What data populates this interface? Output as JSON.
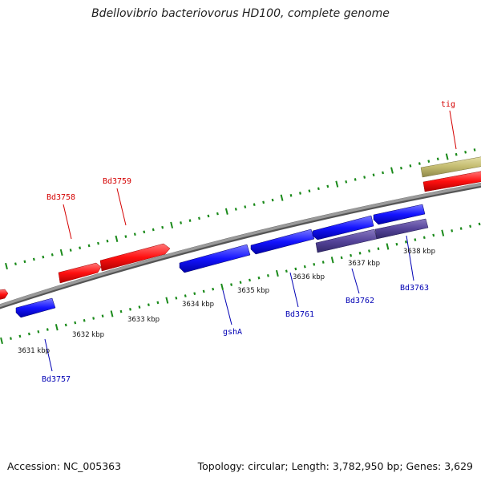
{
  "title": "Bdellovibrio bacteriovorus HD100, complete genome",
  "footer": {
    "accession": "Accession: NC_005363",
    "stats": "Topology: circular; Length: 3,782,950 bp; Genes: 3,629"
  },
  "colors": {
    "forward_gene": "#ff1a1a",
    "reverse_gene": "#1a1aff",
    "highlight_gene": "#5a4a9a",
    "feature_tan": "#c8c078",
    "backbone": "#8c8c8c",
    "tick": "#1a8a1a",
    "forward_label": "#d40000",
    "reverse_label": "#0000b4"
  },
  "forward_labels": {
    "bd3758": "Bd3758",
    "bd3759": "Bd3759",
    "tig": "tig"
  },
  "reverse_labels": {
    "bd3757": "Bd3757",
    "gsha": "gshA",
    "bd3761": "Bd3761",
    "bd3762": "Bd3762",
    "bd3763": "Bd3763"
  },
  "kbp_labels": {
    "k3631": "3631 kbp",
    "k3632": "3632 kbp",
    "k3633": "3633 kbp",
    "k3634": "3634 kbp",
    "k3635": "3635 kbp",
    "k3636": "3636 kbp",
    "k3637": "3637 kbp",
    "k3638": "3638 kbp"
  }
}
